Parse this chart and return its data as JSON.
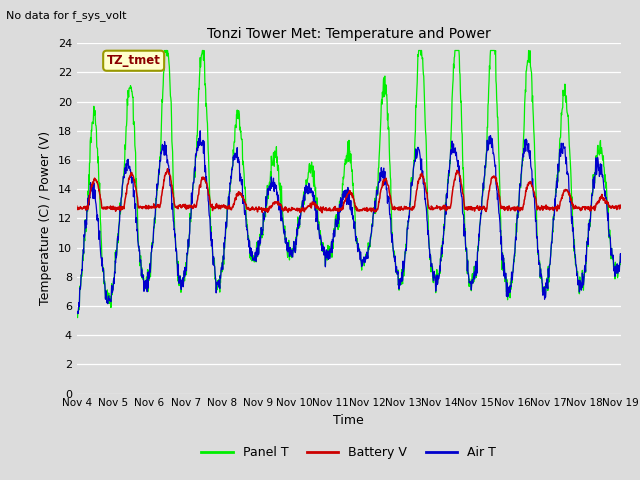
{
  "title": "Tonzi Tower Met: Temperature and Power",
  "xlabel": "Time",
  "ylabel": "Temperature (C) / Power (V)",
  "top_left_text": "No data for f_sys_volt",
  "legend_label_text": "TZ_tmet",
  "ylim": [
    0,
    24
  ],
  "yticks": [
    0,
    2,
    4,
    6,
    8,
    10,
    12,
    14,
    16,
    18,
    20,
    22,
    24
  ],
  "xtick_labels": [
    "Nov 4",
    "Nov 5",
    "Nov 6",
    "Nov 7",
    "Nov 8",
    "Nov 9",
    "Nov 10",
    "Nov 11",
    "Nov 12",
    "Nov 13",
    "Nov 14",
    "Nov 15",
    "Nov 16",
    "Nov 17",
    "Nov 18",
    "Nov 19"
  ],
  "background_color": "#dcdcdc",
  "panel_T_color": "#00ee00",
  "battery_V_color": "#cc0000",
  "air_T_color": "#0000cc",
  "legend_entries": [
    "Panel T",
    "Battery V",
    "Air T"
  ],
  "figsize": [
    6.4,
    4.8
  ],
  "dpi": 100
}
